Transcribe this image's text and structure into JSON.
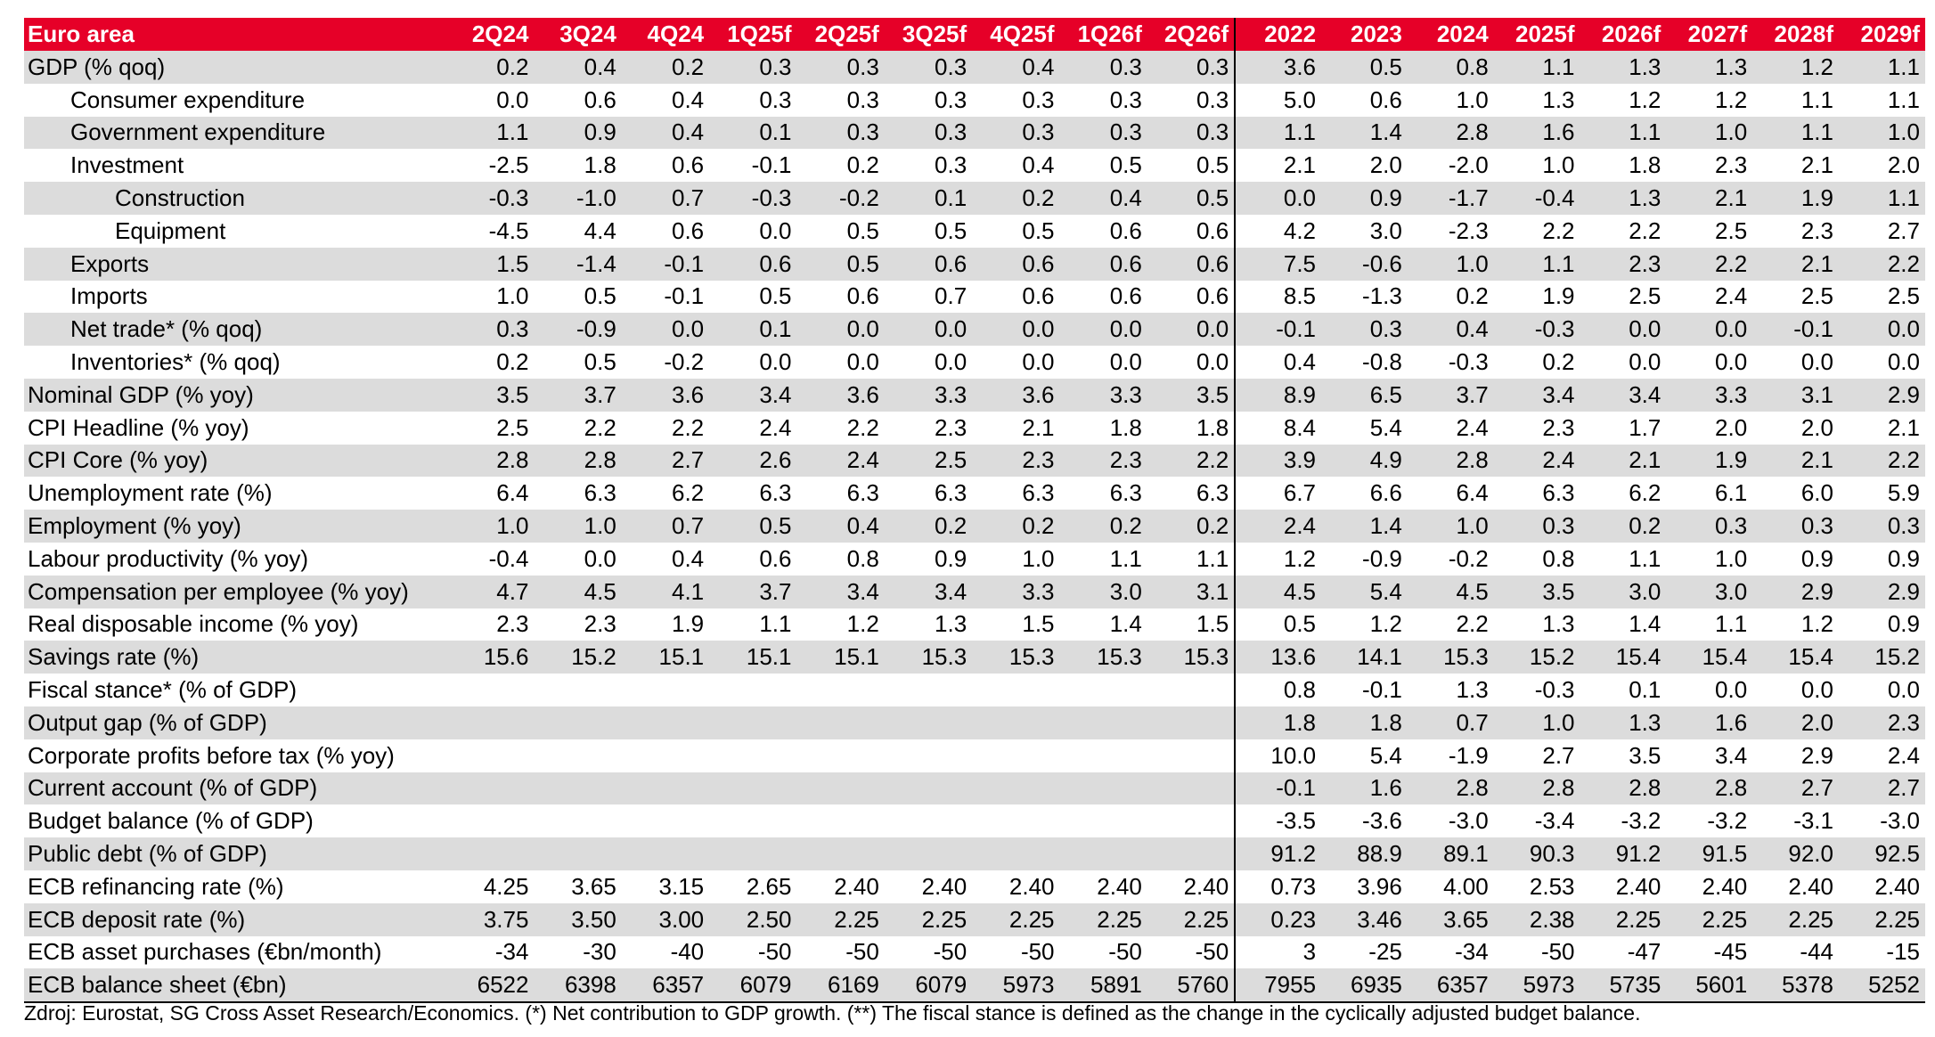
{
  "table": {
    "title": "Euro area",
    "quarter_headers": [
      "2Q24",
      "3Q24",
      "4Q24",
      "1Q25f",
      "2Q25f",
      "3Q25f",
      "4Q25f",
      "1Q26f",
      "2Q26f"
    ],
    "year_headers": [
      "2022",
      "2023",
      "2024",
      "2025f",
      "2026f",
      "2027f",
      "2028f",
      "2029f"
    ],
    "rows": [
      {
        "label": "GDP (% qoq)",
        "indent": 0,
        "shaded": true,
        "quarters": [
          "0.2",
          "0.4",
          "0.2",
          "0.3",
          "0.3",
          "0.3",
          "0.4",
          "0.3",
          "0.3"
        ],
        "years": [
          "3.6",
          "0.5",
          "0.8",
          "1.1",
          "1.3",
          "1.3",
          "1.2",
          "1.1"
        ]
      },
      {
        "label": "Consumer expenditure",
        "indent": 1,
        "shaded": false,
        "quarters": [
          "0.0",
          "0.6",
          "0.4",
          "0.3",
          "0.3",
          "0.3",
          "0.3",
          "0.3",
          "0.3"
        ],
        "years": [
          "5.0",
          "0.6",
          "1.0",
          "1.3",
          "1.2",
          "1.2",
          "1.1",
          "1.1"
        ]
      },
      {
        "label": "Government expenditure",
        "indent": 1,
        "shaded": true,
        "quarters": [
          "1.1",
          "0.9",
          "0.4",
          "0.1",
          "0.3",
          "0.3",
          "0.3",
          "0.3",
          "0.3"
        ],
        "years": [
          "1.1",
          "1.4",
          "2.8",
          "1.6",
          "1.1",
          "1.0",
          "1.1",
          "1.0"
        ]
      },
      {
        "label": "Investment",
        "indent": 1,
        "shaded": false,
        "quarters": [
          "-2.5",
          "1.8",
          "0.6",
          "-0.1",
          "0.2",
          "0.3",
          "0.4",
          "0.5",
          "0.5"
        ],
        "years": [
          "2.1",
          "2.0",
          "-2.0",
          "1.0",
          "1.8",
          "2.3",
          "2.1",
          "2.0"
        ]
      },
      {
        "label": "Construction",
        "indent": 2,
        "shaded": true,
        "quarters": [
          "-0.3",
          "-1.0",
          "0.7",
          "-0.3",
          "-0.2",
          "0.1",
          "0.2",
          "0.4",
          "0.5"
        ],
        "years": [
          "0.0",
          "0.9",
          "-1.7",
          "-0.4",
          "1.3",
          "2.1",
          "1.9",
          "1.1"
        ]
      },
      {
        "label": "Equipment",
        "indent": 2,
        "shaded": false,
        "quarters": [
          "-4.5",
          "4.4",
          "0.6",
          "0.0",
          "0.5",
          "0.5",
          "0.5",
          "0.6",
          "0.6"
        ],
        "years": [
          "4.2",
          "3.0",
          "-2.3",
          "2.2",
          "2.2",
          "2.5",
          "2.3",
          "2.7"
        ]
      },
      {
        "label": "Exports",
        "indent": 1,
        "shaded": true,
        "quarters": [
          "1.5",
          "-1.4",
          "-0.1",
          "0.6",
          "0.5",
          "0.6",
          "0.6",
          "0.6",
          "0.6"
        ],
        "years": [
          "7.5",
          "-0.6",
          "1.0",
          "1.1",
          "2.3",
          "2.2",
          "2.1",
          "2.2"
        ]
      },
      {
        "label": "Imports",
        "indent": 1,
        "shaded": false,
        "quarters": [
          "1.0",
          "0.5",
          "-0.1",
          "0.5",
          "0.6",
          "0.7",
          "0.6",
          "0.6",
          "0.6"
        ],
        "years": [
          "8.5",
          "-1.3",
          "0.2",
          "1.9",
          "2.5",
          "2.4",
          "2.5",
          "2.5"
        ]
      },
      {
        "label": "Net trade* (% qoq)",
        "indent": 1,
        "shaded": true,
        "quarters": [
          "0.3",
          "-0.9",
          "0.0",
          "0.1",
          "0.0",
          "0.0",
          "0.0",
          "0.0",
          "0.0"
        ],
        "years": [
          "-0.1",
          "0.3",
          "0.4",
          "-0.3",
          "0.0",
          "0.0",
          "-0.1",
          "0.0"
        ]
      },
      {
        "label": "Inventories* (% qoq)",
        "indent": 1,
        "shaded": false,
        "quarters": [
          "0.2",
          "0.5",
          "-0.2",
          "0.0",
          "0.0",
          "0.0",
          "0.0",
          "0.0",
          "0.0"
        ],
        "years": [
          "0.4",
          "-0.8",
          "-0.3",
          "0.2",
          "0.0",
          "0.0",
          "0.0",
          "0.0"
        ]
      },
      {
        "label": "Nominal GDP (% yoy)",
        "indent": 0,
        "shaded": true,
        "quarters": [
          "3.5",
          "3.7",
          "3.6",
          "3.4",
          "3.6",
          "3.3",
          "3.6",
          "3.3",
          "3.5"
        ],
        "years": [
          "8.9",
          "6.5",
          "3.7",
          "3.4",
          "3.4",
          "3.3",
          "3.1",
          "2.9"
        ]
      },
      {
        "label": "CPI Headline (% yoy)",
        "indent": 0,
        "shaded": false,
        "quarters": [
          "2.5",
          "2.2",
          "2.2",
          "2.4",
          "2.2",
          "2.3",
          "2.1",
          "1.8",
          "1.8"
        ],
        "years": [
          "8.4",
          "5.4",
          "2.4",
          "2.3",
          "1.7",
          "2.0",
          "2.0",
          "2.1"
        ]
      },
      {
        "label": "CPI Core (% yoy)",
        "indent": 0,
        "shaded": true,
        "quarters": [
          "2.8",
          "2.8",
          "2.7",
          "2.6",
          "2.4",
          "2.5",
          "2.3",
          "2.3",
          "2.2"
        ],
        "years": [
          "3.9",
          "4.9",
          "2.8",
          "2.4",
          "2.1",
          "1.9",
          "2.1",
          "2.2"
        ]
      },
      {
        "label": "Unemployment rate (%)",
        "indent": 0,
        "shaded": false,
        "quarters": [
          "6.4",
          "6.3",
          "6.2",
          "6.3",
          "6.3",
          "6.3",
          "6.3",
          "6.3",
          "6.3"
        ],
        "years": [
          "6.7",
          "6.6",
          "6.4",
          "6.3",
          "6.2",
          "6.1",
          "6.0",
          "5.9"
        ]
      },
      {
        "label": "Employment (% yoy)",
        "indent": 0,
        "shaded": true,
        "quarters": [
          "1.0",
          "1.0",
          "0.7",
          "0.5",
          "0.4",
          "0.2",
          "0.2",
          "0.2",
          "0.2"
        ],
        "years": [
          "2.4",
          "1.4",
          "1.0",
          "0.3",
          "0.2",
          "0.3",
          "0.3",
          "0.3"
        ]
      },
      {
        "label": "Labour productivity (% yoy)",
        "indent": 0,
        "shaded": false,
        "quarters": [
          "-0.4",
          "0.0",
          "0.4",
          "0.6",
          "0.8",
          "0.9",
          "1.0",
          "1.1",
          "1.1"
        ],
        "years": [
          "1.2",
          "-0.9",
          "-0.2",
          "0.8",
          "1.1",
          "1.0",
          "0.9",
          "0.9"
        ]
      },
      {
        "label": "Compensation per employee (% yoy)",
        "indent": 0,
        "shaded": true,
        "quarters": [
          "4.7",
          "4.5",
          "4.1",
          "3.7",
          "3.4",
          "3.4",
          "3.3",
          "3.0",
          "3.1"
        ],
        "years": [
          "4.5",
          "5.4",
          "4.5",
          "3.5",
          "3.0",
          "3.0",
          "2.9",
          "2.9"
        ]
      },
      {
        "label": "Real disposable income (% yoy)",
        "indent": 0,
        "shaded": false,
        "quarters": [
          "2.3",
          "2.3",
          "1.9",
          "1.1",
          "1.2",
          "1.3",
          "1.5",
          "1.4",
          "1.5"
        ],
        "years": [
          "0.5",
          "1.2",
          "2.2",
          "1.3",
          "1.4",
          "1.1",
          "1.2",
          "0.9"
        ]
      },
      {
        "label": "Savings rate (%)",
        "indent": 0,
        "shaded": true,
        "quarters": [
          "15.6",
          "15.2",
          "15.1",
          "15.1",
          "15.1",
          "15.3",
          "15.3",
          "15.3",
          "15.3"
        ],
        "years": [
          "13.6",
          "14.1",
          "15.3",
          "15.2",
          "15.4",
          "15.4",
          "15.4",
          "15.2"
        ]
      },
      {
        "label": "Fiscal stance* (% of GDP)",
        "indent": 0,
        "shaded": false,
        "quarters": [
          "",
          "",
          "",
          "",
          "",
          "",
          "",
          "",
          ""
        ],
        "years": [
          "0.8",
          "-0.1",
          "1.3",
          "-0.3",
          "0.1",
          "0.0",
          "0.0",
          "0.0"
        ]
      },
      {
        "label": "Output gap (% of GDP)",
        "indent": 0,
        "shaded": true,
        "quarters": [
          "",
          "",
          "",
          "",
          "",
          "",
          "",
          "",
          ""
        ],
        "years": [
          "1.8",
          "1.8",
          "0.7",
          "1.0",
          "1.3",
          "1.6",
          "2.0",
          "2.3"
        ]
      },
      {
        "label": "Corporate profits before tax (% yoy)",
        "indent": 0,
        "shaded": false,
        "quarters": [
          "",
          "",
          "",
          "",
          "",
          "",
          "",
          "",
          ""
        ],
        "years": [
          "10.0",
          "5.4",
          "-1.9",
          "2.7",
          "3.5",
          "3.4",
          "2.9",
          "2.4"
        ]
      },
      {
        "label": "Current account (% of GDP)",
        "indent": 0,
        "shaded": true,
        "quarters": [
          "",
          "",
          "",
          "",
          "",
          "",
          "",
          "",
          ""
        ],
        "years": [
          "-0.1",
          "1.6",
          "2.8",
          "2.8",
          "2.8",
          "2.8",
          "2.7",
          "2.7"
        ]
      },
      {
        "label": "Budget balance (% of GDP)",
        "indent": 0,
        "shaded": false,
        "quarters": [
          "",
          "",
          "",
          "",
          "",
          "",
          "",
          "",
          ""
        ],
        "years": [
          "-3.5",
          "-3.6",
          "-3.0",
          "-3.4",
          "-3.2",
          "-3.2",
          "-3.1",
          "-3.0"
        ]
      },
      {
        "label": "Public debt (% of GDP)",
        "indent": 0,
        "shaded": true,
        "quarters": [
          "",
          "",
          "",
          "",
          "",
          "",
          "",
          "",
          ""
        ],
        "years": [
          "91.2",
          "88.9",
          "89.1",
          "90.3",
          "91.2",
          "91.5",
          "92.0",
          "92.5"
        ]
      },
      {
        "label": "ECB refinancing rate (%)",
        "indent": 0,
        "shaded": false,
        "quarters": [
          "4.25",
          "3.65",
          "3.15",
          "2.65",
          "2.40",
          "2.40",
          "2.40",
          "2.40",
          "2.40"
        ],
        "years": [
          "0.73",
          "3.96",
          "4.00",
          "2.53",
          "2.40",
          "2.40",
          "2.40",
          "2.40"
        ]
      },
      {
        "label": "ECB deposit rate (%)",
        "indent": 0,
        "shaded": true,
        "quarters": [
          "3.75",
          "3.50",
          "3.00",
          "2.50",
          "2.25",
          "2.25",
          "2.25",
          "2.25",
          "2.25"
        ],
        "years": [
          "0.23",
          "3.46",
          "3.65",
          "2.38",
          "2.25",
          "2.25",
          "2.25",
          "2.25"
        ]
      },
      {
        "label": "ECB asset purchases (€bn/month)",
        "indent": 0,
        "shaded": false,
        "quarters": [
          "-34",
          "-30",
          "-40",
          "-50",
          "-50",
          "-50",
          "-50",
          "-50",
          "-50"
        ],
        "years": [
          "3",
          "-25",
          "-34",
          "-50",
          "-47",
          "-45",
          "-44",
          "-15"
        ]
      },
      {
        "label": "ECB balance sheet (€bn)",
        "indent": 0,
        "shaded": true,
        "quarters": [
          "6522",
          "6398",
          "6357",
          "6079",
          "6169",
          "6079",
          "5973",
          "5891",
          "5760"
        ],
        "years": [
          "7955",
          "6935",
          "6357",
          "5973",
          "5735",
          "5601",
          "5378",
          "5252"
        ]
      }
    ]
  },
  "footnote": "Zdroj: Eurostat, SG Cross Asset Research/Economics. (*) Net contribution to GDP growth. (**) The fiscal stance is defined as the change in the cyclically adjusted budget balance.",
  "colors": {
    "header_bg": "#e60028",
    "header_text": "#ffffff",
    "shaded_row": "#dcdcdc"
  }
}
